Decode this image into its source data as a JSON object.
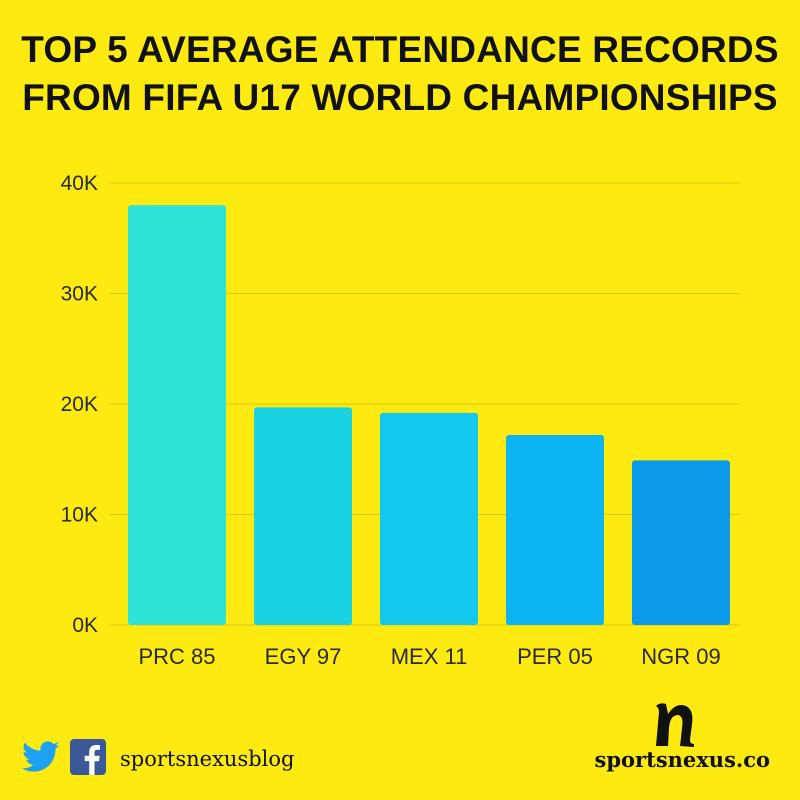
{
  "title_line1": "TOP 5 AVERAGE ATTENDANCE RECORDS",
  "title_line2": "FROM FIFA U17 WORLD CHAMPIONSHIPS",
  "footer": {
    "social_handle": "sportsnexusblog",
    "brand_url": "sportsnexus.co",
    "icons": [
      "twitter-icon",
      "facebook-icon",
      "sportsnexus-logo-icon"
    ]
  },
  "colors": {
    "background": "#FCEA10",
    "bars": [
      "#2EE4D6",
      "#19D3E2",
      "#12C8EC",
      "#0CB4F2",
      "#0B9AEA"
    ]
  },
  "chart_data": {
    "type": "bar",
    "title": "TOP 5 AVERAGE ATTENDANCE RECORDS FROM FIFA U17 WORLD CHAMPIONSHIPS",
    "categories": [
      "PRC 85",
      "EGY 97",
      "MEX 11",
      "PER 05",
      "NGR 09"
    ],
    "values": [
      38000,
      19700,
      19200,
      17200,
      14900
    ],
    "ylim": [
      0,
      40000
    ],
    "yticks": [
      0,
      10000,
      20000,
      30000,
      40000
    ],
    "ytick_labels": [
      "0K",
      "10K",
      "20K",
      "30K",
      "40K"
    ],
    "grid": true,
    "legend": "none"
  }
}
